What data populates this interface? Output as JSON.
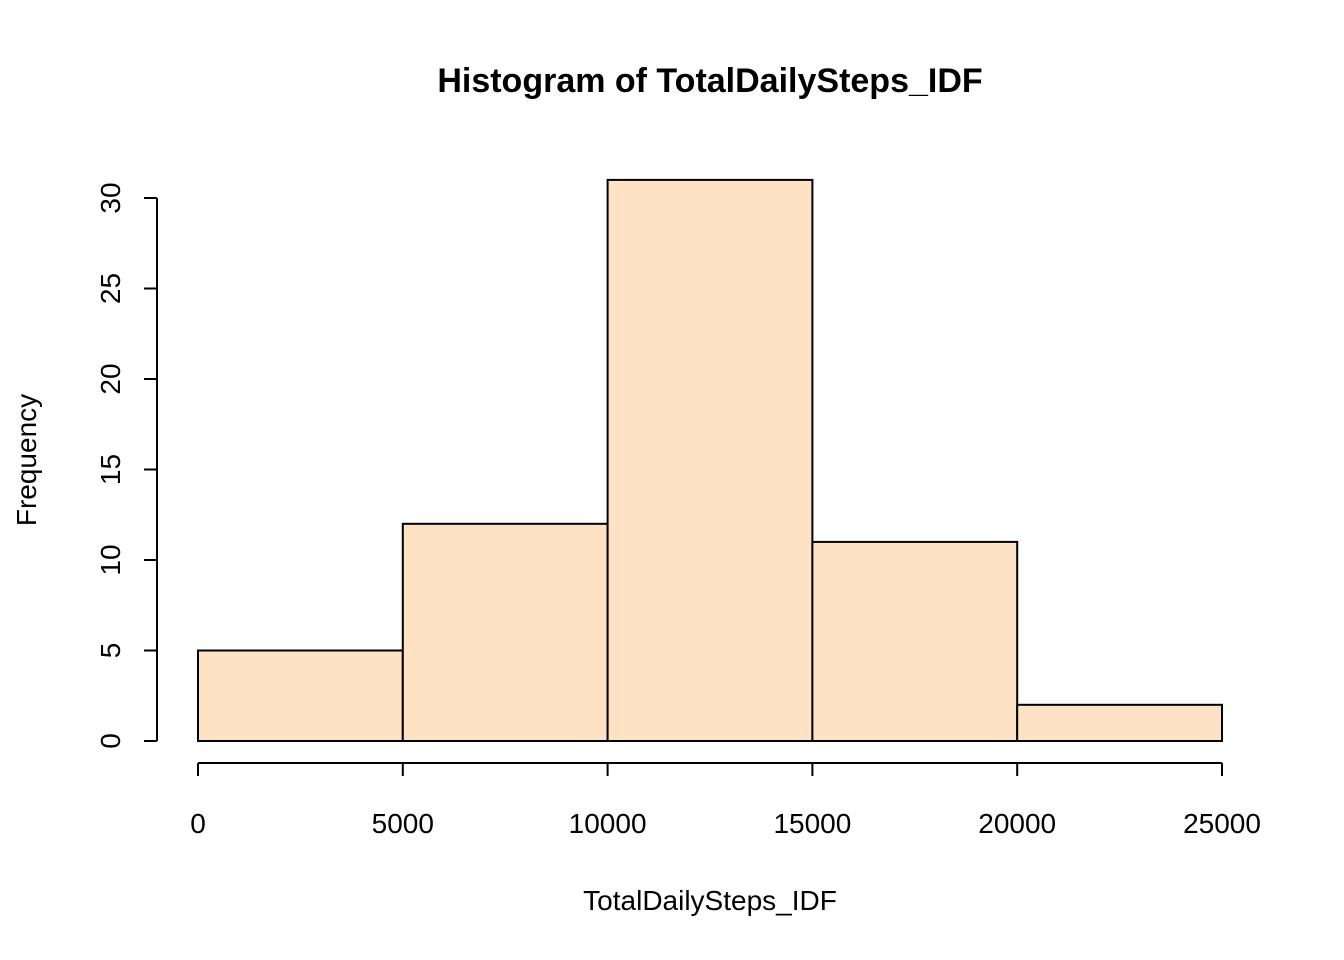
{
  "chart_data": {
    "type": "bar",
    "title": "Histogram of TotalDailySteps_IDF",
    "xlabel": "TotalDailySteps_IDF",
    "ylabel": "Frequency",
    "bins": [
      {
        "start": 0,
        "end": 5000,
        "count": 5
      },
      {
        "start": 5000,
        "end": 10000,
        "count": 12
      },
      {
        "start": 10000,
        "end": 15000,
        "count": 31
      },
      {
        "start": 15000,
        "end": 20000,
        "count": 11
      },
      {
        "start": 20000,
        "end": 25000,
        "count": 2
      }
    ],
    "x_ticks": [
      0,
      5000,
      10000,
      15000,
      20000,
      25000
    ],
    "y_ticks": [
      0,
      5,
      10,
      15,
      20,
      25,
      30
    ],
    "xlim": [
      0,
      25000
    ],
    "ylim": [
      0,
      31
    ],
    "grid": false,
    "bar_color": "#FDE3C4",
    "edge_color": "#000000"
  }
}
